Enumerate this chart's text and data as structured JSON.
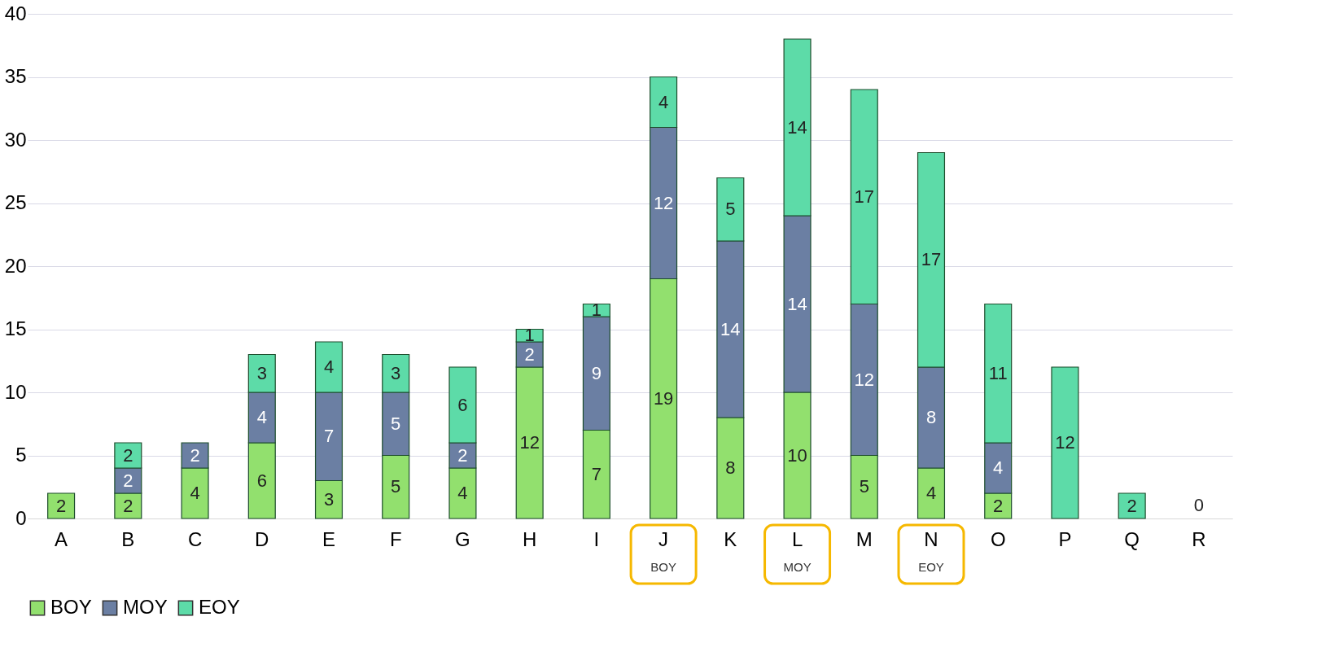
{
  "chart_data": {
    "type": "bar",
    "stacked": true,
    "categories": [
      "A",
      "B",
      "C",
      "D",
      "E",
      "F",
      "G",
      "H",
      "I",
      "J",
      "K",
      "L",
      "M",
      "N",
      "O",
      "P",
      "Q",
      "R"
    ],
    "series": [
      {
        "name": "BOY",
        "color": "#92e06e",
        "values": [
          2,
          2,
          4,
          6,
          3,
          5,
          4,
          12,
          7,
          19,
          8,
          10,
          5,
          4,
          2,
          0,
          0,
          0
        ],
        "value_labels": [
          "2",
          "2",
          "4",
          "6",
          "3",
          "5",
          "4",
          "12",
          "7",
          "19",
          "8",
          "10",
          "5",
          "4",
          "2",
          null,
          null,
          "0"
        ]
      },
      {
        "name": "MOY",
        "color": "#6b7fa3",
        "values": [
          0,
          2,
          2,
          4,
          7,
          5,
          2,
          2,
          9,
          12,
          14,
          14,
          12,
          8,
          4,
          0,
          0,
          0
        ],
        "value_labels": [
          null,
          "2",
          "2",
          "4",
          "7",
          "5",
          "2",
          "2",
          "9",
          "12",
          "14",
          "14",
          "12",
          "8",
          "4",
          null,
          null,
          null
        ]
      },
      {
        "name": "EOY",
        "color": "#5ddba8",
        "values": [
          0,
          2,
          0,
          3,
          4,
          3,
          6,
          1,
          1,
          4,
          5,
          14,
          17,
          17,
          11,
          12,
          2,
          0
        ],
        "value_labels": [
          null,
          "2",
          null,
          "3",
          "4",
          "3",
          "6",
          "1",
          "1",
          "4",
          "5",
          "14",
          "17",
          "17",
          "11",
          "12",
          "2",
          null
        ]
      }
    ],
    "ylim": [
      0,
      40
    ],
    "yticks": [
      0,
      5,
      10,
      15,
      20,
      25,
      30,
      35,
      40
    ],
    "grid": "y",
    "legend": "bottom",
    "annotations": [
      "BOY",
      "MOY",
      "EOY"
    ]
  }
}
